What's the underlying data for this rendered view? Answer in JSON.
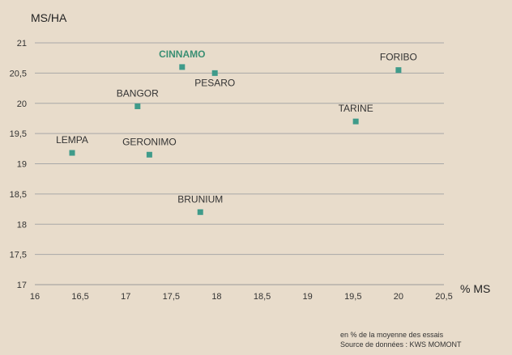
{
  "chart_data": {
    "type": "scatter",
    "title": "",
    "xlabel": "% MS",
    "ylabel": "MS/HA",
    "xlim": [
      16,
      20.5
    ],
    "ylim": [
      17,
      21
    ],
    "xticks": [
      "16",
      "16,5",
      "17",
      "17,5",
      "18",
      "18,5",
      "19",
      "19,5",
      "20",
      "20,5"
    ],
    "yticks": [
      "17",
      "17,5",
      "18",
      "18,5",
      "19",
      "19,5",
      "20",
      "20,5",
      "21"
    ],
    "grid": "horizontal",
    "marker_color": "#3f9b8a",
    "highlight_color": "#3a8f73",
    "points": [
      {
        "label": "CINNAMO",
        "x": 17.62,
        "y": 20.6,
        "highlight": true,
        "label_pos": "above"
      },
      {
        "label": "PESARO",
        "x": 17.98,
        "y": 20.5,
        "highlight": false,
        "label_pos": "below"
      },
      {
        "label": "FORIBO",
        "x": 20.0,
        "y": 20.55,
        "highlight": false,
        "label_pos": "above"
      },
      {
        "label": "BANGOR",
        "x": 17.13,
        "y": 19.95,
        "highlight": false,
        "label_pos": "above"
      },
      {
        "label": "TARINE",
        "x": 19.53,
        "y": 19.7,
        "highlight": false,
        "label_pos": "above"
      },
      {
        "label": "LEMPA",
        "x": 16.41,
        "y": 19.18,
        "highlight": false,
        "label_pos": "above"
      },
      {
        "label": "GERONIMO",
        "x": 17.26,
        "y": 19.15,
        "highlight": false,
        "label_pos": "above"
      },
      {
        "label": "BRUNIUM",
        "x": 17.82,
        "y": 18.2,
        "highlight": false,
        "label_pos": "above"
      }
    ]
  },
  "footnote": {
    "line1": "en % de la moyenne des essais",
    "line2": "Source de données : KWS MOMONT"
  }
}
